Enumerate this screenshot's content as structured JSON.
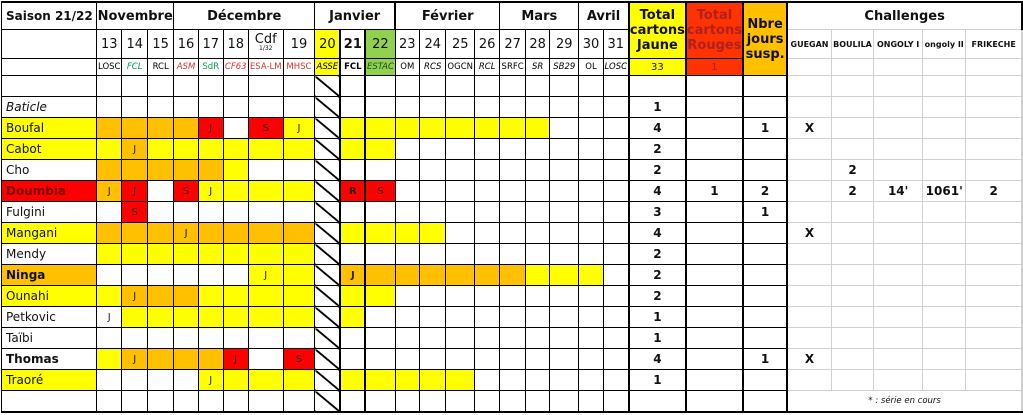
{
  "palette": {
    "W": "#ffffff",
    "Y": "#ffff00",
    "O": "#ffc000",
    "R": "#ff0000",
    "G": "#92d050"
  },
  "header": {
    "season": "Saison 21/22",
    "months": [
      {
        "label": "Novembre",
        "span": 3
      },
      {
        "label": "Décembre",
        "span": 5
      },
      {
        "label": "Janvier",
        "span": 3
      },
      {
        "label": "Février",
        "span": 4
      },
      {
        "label": "Mars",
        "span": 3
      },
      {
        "label": "Avril",
        "span": 2
      }
    ],
    "total_yellow_label": "Total cartons Jaune",
    "total_red_label": "Total cartons Rouges",
    "suspension_label": "Nbre jours susp.",
    "total_yellow_value": "33",
    "total_red_value": "1",
    "challenges_label": "Challenges",
    "challenge_columns": [
      "GUEGAN",
      "BOULILA",
      "ONGOLY I",
      "ongoly II",
      "FRIKECHE"
    ],
    "colors": {
      "yellow": "#ffff00",
      "red": "#ff3300",
      "orange": "#ffc000"
    }
  },
  "rounds": [
    {
      "num": "13",
      "opp": "LOSC",
      "color": "#000000",
      "italic": false,
      "bg": "W"
    },
    {
      "num": "14",
      "opp": "FCL",
      "color": "#00a050",
      "italic": true,
      "bg": "W"
    },
    {
      "num": "15",
      "opp": "RCL",
      "color": "#000000",
      "italic": false,
      "bg": "W"
    },
    {
      "num": "16",
      "opp": "ASM",
      "color": "#e03030",
      "italic": true,
      "bg": "W"
    },
    {
      "num": "17",
      "opp": "SdR",
      "color": "#00a050",
      "italic": false,
      "bg": "W"
    },
    {
      "num": "18",
      "opp": "CF63",
      "color": "#e03030",
      "italic": true,
      "bg": "W"
    },
    {
      "num": "Cdf",
      "sub": "1/32",
      "opp": "ESA-LM",
      "color": "#e03030",
      "italic": false,
      "bg": "W"
    },
    {
      "num": "19",
      "opp": "MHSC",
      "color": "#e03030",
      "italic": false,
      "bg": "W"
    },
    {
      "num": "20",
      "opp": "ASSE",
      "color": "#000000",
      "italic": true,
      "bg": "Y"
    },
    {
      "num": "21",
      "opp": "FCL",
      "color": "#000000",
      "italic": false,
      "bold": true,
      "bg": "W"
    },
    {
      "num": "22",
      "opp": "ESTAC",
      "color": "#1a4d1a",
      "italic": true,
      "bg": "G"
    },
    {
      "num": "23",
      "opp": "OM",
      "color": "#000000",
      "italic": false,
      "bg": "W"
    },
    {
      "num": "24",
      "opp": "RCS",
      "color": "#000000",
      "italic": true,
      "bg": "W"
    },
    {
      "num": "25",
      "opp": "OGCN",
      "color": "#000000",
      "italic": false,
      "bg": "W"
    },
    {
      "num": "26",
      "opp": "RCL",
      "color": "#000000",
      "italic": true,
      "bg": "W"
    },
    {
      "num": "27",
      "opp": "SRFC",
      "color": "#000000",
      "italic": false,
      "bg": "W"
    },
    {
      "num": "28",
      "opp": "SR",
      "color": "#000000",
      "italic": true,
      "bg": "W"
    },
    {
      "num": "29",
      "opp": "SB29",
      "color": "#000000",
      "italic": true,
      "bg": "W"
    },
    {
      "num": "30",
      "opp": "OL",
      "color": "#000000",
      "italic": false,
      "bg": "W"
    },
    {
      "num": "31",
      "opp": "LOSC",
      "color": "#000000",
      "italic": true,
      "bg": "W"
    }
  ],
  "players": [
    {
      "name": "Baticle",
      "style": "italic",
      "bg": "W",
      "cells": "WWWWWWWWHWWWWWWWWWWW",
      "marks": {},
      "yellow": "1",
      "red": "",
      "susp": "",
      "challenges": [
        "",
        "",
        "",
        "",
        ""
      ]
    },
    {
      "name": "Boufal",
      "style": "",
      "bg": "Y",
      "cells": "OOOORWRYHYYYYYYYYWWW",
      "marks": {
        "4": "J",
        "6": "S",
        "7": "J"
      },
      "yellow": "4",
      "red": "",
      "susp": "1",
      "challenges": [
        "X",
        "",
        "",
        "",
        ""
      ]
    },
    {
      "name": "Cabot",
      "style": "",
      "bg": "Y",
      "cells": "YOYYYYYYHYYWWWWWWWWW",
      "marks": {
        "1": "J"
      },
      "yellow": "2",
      "red": "",
      "susp": "",
      "challenges": [
        "",
        "",
        "",
        "",
        ""
      ]
    },
    {
      "name": "Cho",
      "style": "",
      "bg": "W",
      "cells": "OOOOOYWWHWWWWWWWWWWW",
      "marks": {},
      "yellow": "2",
      "red": "",
      "susp": "",
      "challenges": [
        "",
        "2",
        "",
        "",
        ""
      ]
    },
    {
      "name": "Doumbia",
      "style": "bold",
      "bg": "R",
      "cells": "ORWRYYYYHRRWWWWWWWWW",
      "marks": {
        "0": "J",
        "1": "J",
        "3": "S",
        "4": "J",
        "9": "R",
        "10": "S"
      },
      "yellow": "4",
      "red": "1",
      "susp": "2",
      "challenges": [
        "",
        "2",
        "14'",
        "1061'",
        "2"
      ]
    },
    {
      "name": "Fulgini",
      "style": "",
      "bg": "W",
      "cells": "WRWWWWWWHWWWWWWWWWWW",
      "marks": {
        "1": "S"
      },
      "yellow": "3",
      "red": "",
      "susp": "1",
      "challenges": [
        "",
        "",
        "",
        "",
        ""
      ]
    },
    {
      "name": "Mangani",
      "style": "",
      "bg": "Y",
      "cells": "OOOOOOOOHYYYYWWWWWWW",
      "marks": {
        "3": "J"
      },
      "yellow": "4",
      "red": "",
      "susp": "",
      "challenges": [
        "X",
        "",
        "",
        "",
        ""
      ]
    },
    {
      "name": "Mendy",
      "style": "",
      "bg": "W",
      "cells": "YYYYYYYYHWWWWWWWWWWW",
      "marks": {},
      "yellow": "2",
      "red": "",
      "susp": "",
      "challenges": [
        "",
        "",
        "",
        "",
        ""
      ]
    },
    {
      "name": "Ninga",
      "style": "bold",
      "bg": "O",
      "cells": "WWWWWWYYHOOOOOOOYYYW",
      "marks": {
        "6": "J",
        "9": "J"
      },
      "yellow": "2",
      "red": "",
      "susp": "",
      "challenges": [
        "",
        "",
        "",
        "",
        ""
      ]
    },
    {
      "name": "Ounahi",
      "style": "",
      "bg": "Y",
      "cells": "YOOOYYYYHYYWWWWWWWWW",
      "marks": {
        "1": "J"
      },
      "yellow": "2",
      "red": "",
      "susp": "",
      "challenges": [
        "",
        "",
        "",
        "",
        ""
      ]
    },
    {
      "name": "Petkovic",
      "style": "",
      "bg": "W",
      "cells": "WYYYYYYYHYWWWWWWWWWW",
      "marks": {
        "0": "J"
      },
      "yellow": "1",
      "red": "",
      "susp": "",
      "challenges": [
        "",
        "",
        "",
        "",
        ""
      ]
    },
    {
      "name": "Taïbi",
      "style": "",
      "bg": "W",
      "cells": "WWWWWWWWHWWWWWWWWWWW",
      "marks": {},
      "yellow": "1",
      "red": "",
      "susp": "",
      "challenges": [
        "",
        "",
        "",
        "",
        ""
      ]
    },
    {
      "name": "Thomas",
      "style": "bold",
      "bg": "W",
      "cells": "YOOOORWRHWWWWWWWWWWW",
      "marks": {
        "1": "J",
        "5": "J",
        "7": "S"
      },
      "yellow": "4",
      "red": "",
      "susp": "1",
      "challenges": [
        "X",
        "",
        "",
        "",
        ""
      ]
    },
    {
      "name": "Traoré",
      "style": "",
      "bg": "Y",
      "cells": "WWWWYYYYHYYYYYWWWWWW",
      "marks": {
        "4": "J"
      },
      "yellow": "1",
      "red": "",
      "susp": "",
      "challenges": [
        "",
        "",
        "",
        "",
        ""
      ]
    }
  ],
  "footnote": "* : série en cours"
}
